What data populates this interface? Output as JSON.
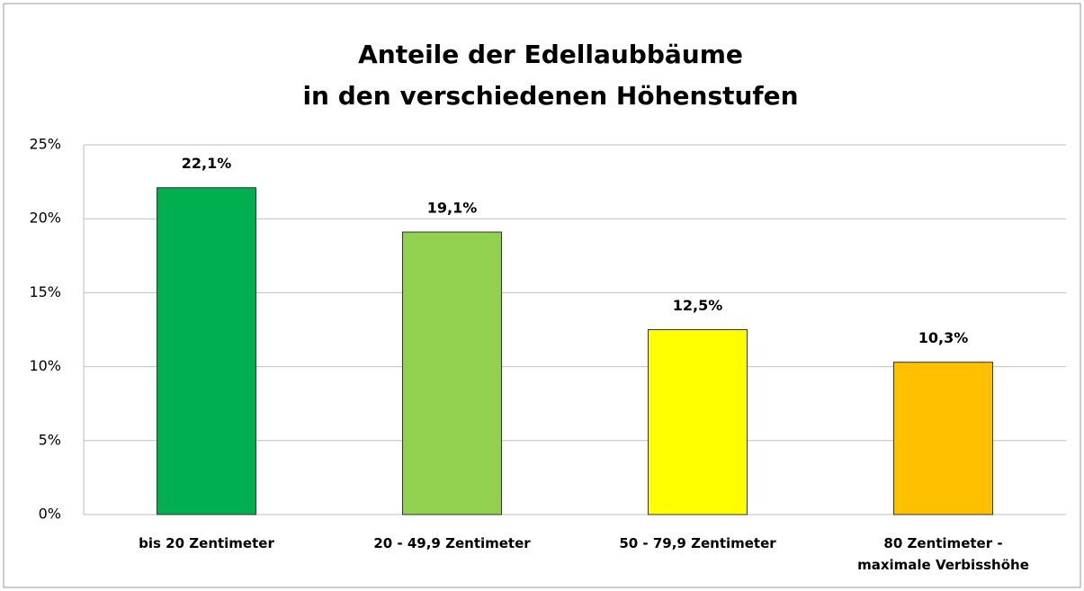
{
  "chart_data": {
    "type": "bar",
    "title": [
      "Anteile der Edellaubbäume",
      "in den verschiedenen Höhenstufen"
    ],
    "categories": [
      "bis 20 Zentimeter",
      "20 - 49,9 Zentimeter",
      "50 - 79,9 Zentimeter",
      "80 Zentimeter - maximale Verbisshöhe"
    ],
    "values": [
      22.1,
      19.1,
      12.5,
      10.3
    ],
    "value_labels": [
      "22,1%",
      "19,1%",
      "12,5%",
      "10,3%"
    ],
    "colors": [
      "#00b050",
      "#92d050",
      "#ffff00",
      "#ffc000"
    ],
    "ylim": [
      0,
      25
    ],
    "yticks": [
      {
        "value": 0,
        "label": "0%"
      },
      {
        "value": 5,
        "label": "5%"
      },
      {
        "value": 10,
        "label": "10%"
      },
      {
        "value": 15,
        "label": "15%"
      },
      {
        "value": 20,
        "label": "20%"
      },
      {
        "value": 25,
        "label": "25%"
      }
    ],
    "grid": true
  }
}
